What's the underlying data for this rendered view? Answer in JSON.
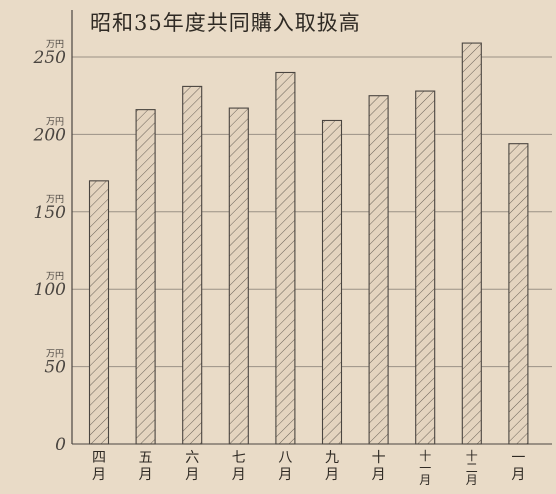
{
  "chart_data": {
    "type": "bar",
    "title": "昭和35年度共同購入取扱高",
    "xlabel": "",
    "ylabel": "",
    "unit": "万円",
    "categories": [
      "四月",
      "五月",
      "六月",
      "七月",
      "八月",
      "九月",
      "十月",
      "十一月",
      "十二月",
      "一月"
    ],
    "values": [
      170,
      216,
      231,
      217,
      240,
      209,
      225,
      228,
      259,
      194
    ],
    "ylim": [
      0,
      250
    ],
    "yticks": [
      0,
      50,
      100,
      150,
      200,
      250
    ],
    "ytick_labels": [
      "0",
      "50",
      "100",
      "150",
      "200",
      "250"
    ],
    "grid": true,
    "legend": "none",
    "bar_pattern": "diagonal-hatch",
    "colors": {
      "background": "#e9dbc7",
      "bar_fill": "#e4d4bf",
      "bar_stroke": "#4a4540",
      "hatch": "#6a6258",
      "grid": "#9a9186",
      "text": "#2f2a24"
    }
  }
}
